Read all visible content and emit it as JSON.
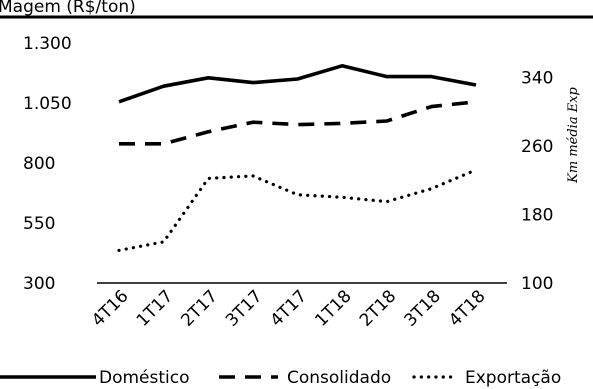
{
  "chart_data": {
    "type": "line",
    "title": "Magem (R$/ton)",
    "categories": [
      "4T16",
      "1T17",
      "2T17",
      "3T17",
      "4T17",
      "1T18",
      "2T18",
      "3T18",
      "4T18"
    ],
    "ylim_left": [
      300,
      1300
    ],
    "yticks_left": [
      "1.300",
      "1.050",
      "800",
      "550",
      "300"
    ],
    "ylim_right": [
      100,
      380
    ],
    "yticks_right": [
      "340",
      "260",
      "180",
      "100"
    ],
    "ylabel_right": "Km média Exp",
    "grid": false,
    "legend_position": "bottom",
    "series": [
      {
        "name": "Doméstico",
        "axis": "left",
        "style": "solid",
        "values": [
          1055,
          1120,
          1155,
          1135,
          1150,
          1205,
          1160,
          1160,
          1125
        ]
      },
      {
        "name": "Consolidado",
        "axis": "left",
        "style": "dashed",
        "values": [
          880,
          880,
          930,
          970,
          960,
          965,
          975,
          1035,
          1055
        ]
      },
      {
        "name": "Exportação",
        "axis": "right",
        "style": "dotted",
        "values": [
          138,
          148,
          222,
          225,
          203,
          200,
          195,
          210,
          232
        ]
      }
    ]
  }
}
